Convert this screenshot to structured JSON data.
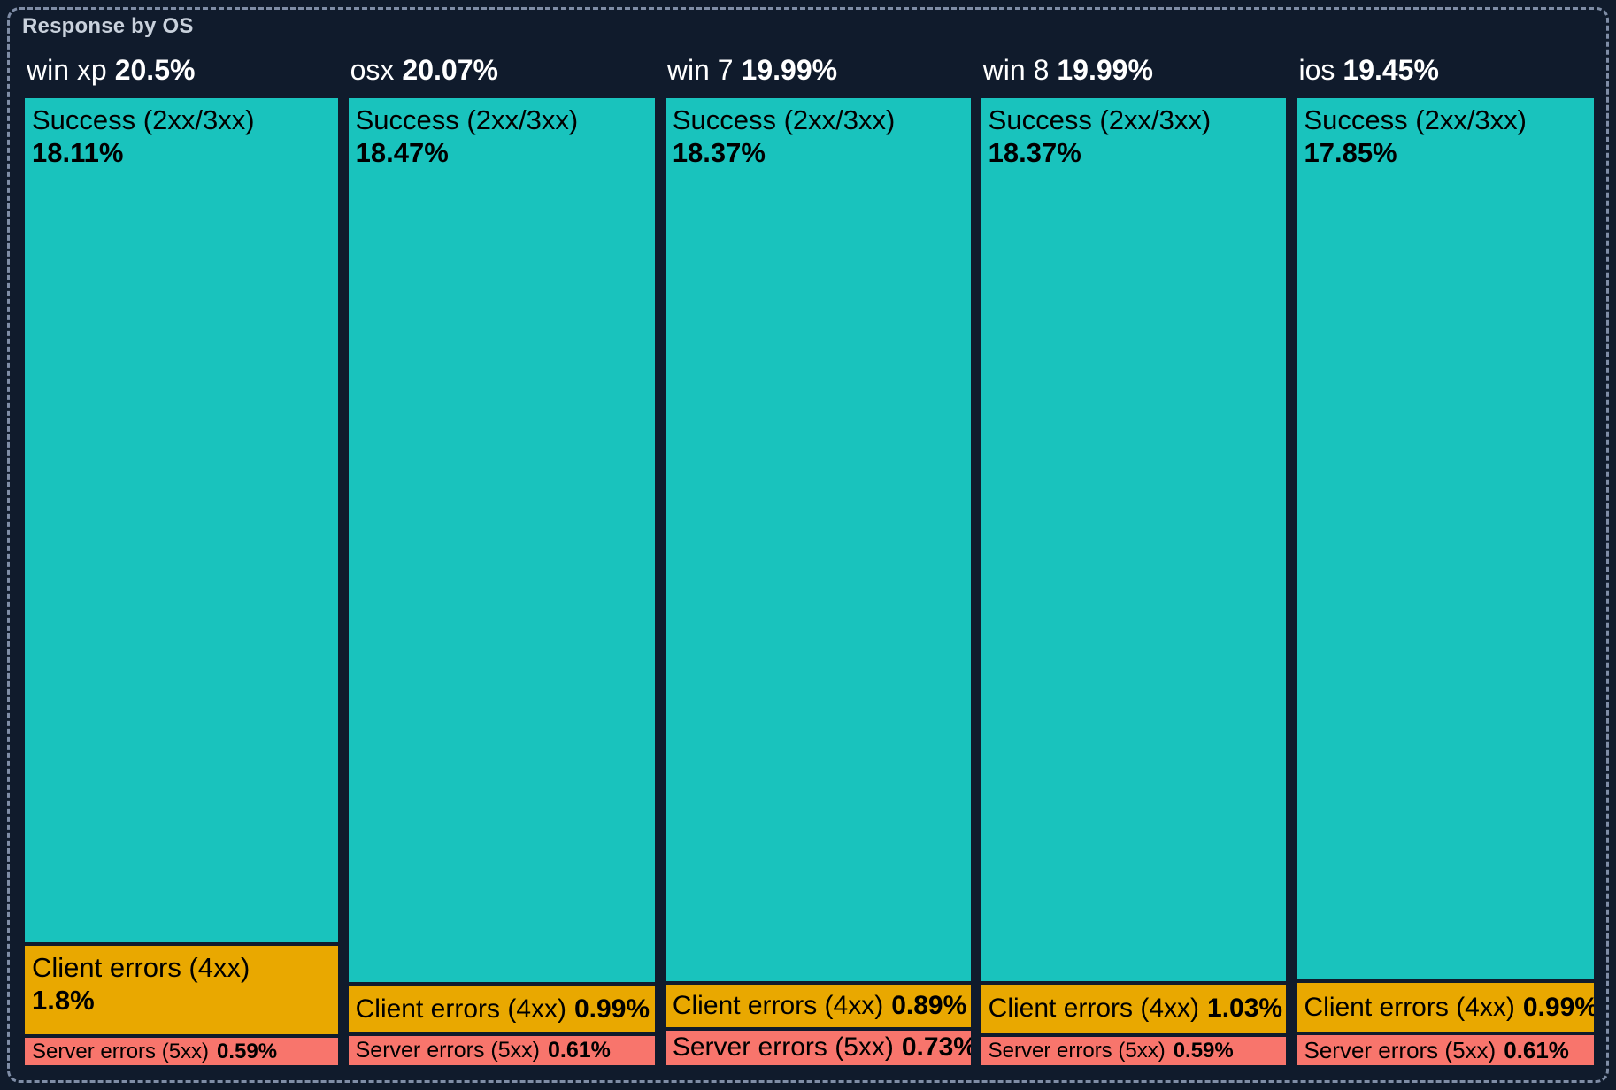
{
  "panel": {
    "title": "Response by OS"
  },
  "colors": {
    "success": "#19C3BD",
    "client_errors": "#E9A800",
    "server_errors": "#F8756C",
    "background": "#101B2C",
    "panel_border": "#7F8DA6",
    "title_text": "#C9D1DC",
    "header_text": "#FFFFFF",
    "segment_text": "#000000"
  },
  "chart_data": {
    "type": "treemap",
    "title": "Response by OS",
    "unit": "%",
    "legend": [
      "Success (2xx/3xx)",
      "Client errors (4xx)",
      "Server errors (5xx)"
    ],
    "layout": "5 columns sized by OS share; segments stacked vertically sized by value within column",
    "columns": [
      {
        "os": "win xp",
        "total": "20.5%",
        "total_value": 20.5,
        "segments": [
          {
            "label": "Success (2xx/3xx)",
            "pct": "18.11%",
            "value": 18.11
          },
          {
            "label": "Client errors (4xx)",
            "pct": "1.8%",
            "value": 1.8
          },
          {
            "label": "Server errors (5xx)",
            "pct": "0.59%",
            "value": 0.59
          }
        ]
      },
      {
        "os": "osx",
        "total": "20.07%",
        "total_value": 20.07,
        "segments": [
          {
            "label": "Success (2xx/3xx)",
            "pct": "18.47%",
            "value": 18.47
          },
          {
            "label": "Client errors (4xx)",
            "pct": "0.99%",
            "value": 0.99
          },
          {
            "label": "Server errors (5xx)",
            "pct": "0.61%",
            "value": 0.61
          }
        ]
      },
      {
        "os": "win 7",
        "total": "19.99%",
        "total_value": 19.99,
        "segments": [
          {
            "label": "Success (2xx/3xx)",
            "pct": "18.37%",
            "value": 18.37
          },
          {
            "label": "Client errors (4xx)",
            "pct": "0.89%",
            "value": 0.89
          },
          {
            "label": "Server errors (5xx)",
            "pct": "0.73%",
            "value": 0.73
          }
        ]
      },
      {
        "os": "win 8",
        "total": "19.99%",
        "total_value": 19.99,
        "segments": [
          {
            "label": "Success (2xx/3xx)",
            "pct": "18.37%",
            "value": 18.37
          },
          {
            "label": "Client errors (4xx)",
            "pct": "1.03%",
            "value": 1.03
          },
          {
            "label": "Server errors (5xx)",
            "pct": "0.59%",
            "value": 0.59
          }
        ]
      },
      {
        "os": "ios",
        "total": "19.45%",
        "total_value": 19.45,
        "segments": [
          {
            "label": "Success (2xx/3xx)",
            "pct": "17.85%",
            "value": 17.85
          },
          {
            "label": "Client errors (4xx)",
            "pct": "0.99%",
            "value": 0.99
          },
          {
            "label": "Server errors (5xx)",
            "pct": "0.61%",
            "value": 0.61
          }
        ]
      }
    ]
  }
}
